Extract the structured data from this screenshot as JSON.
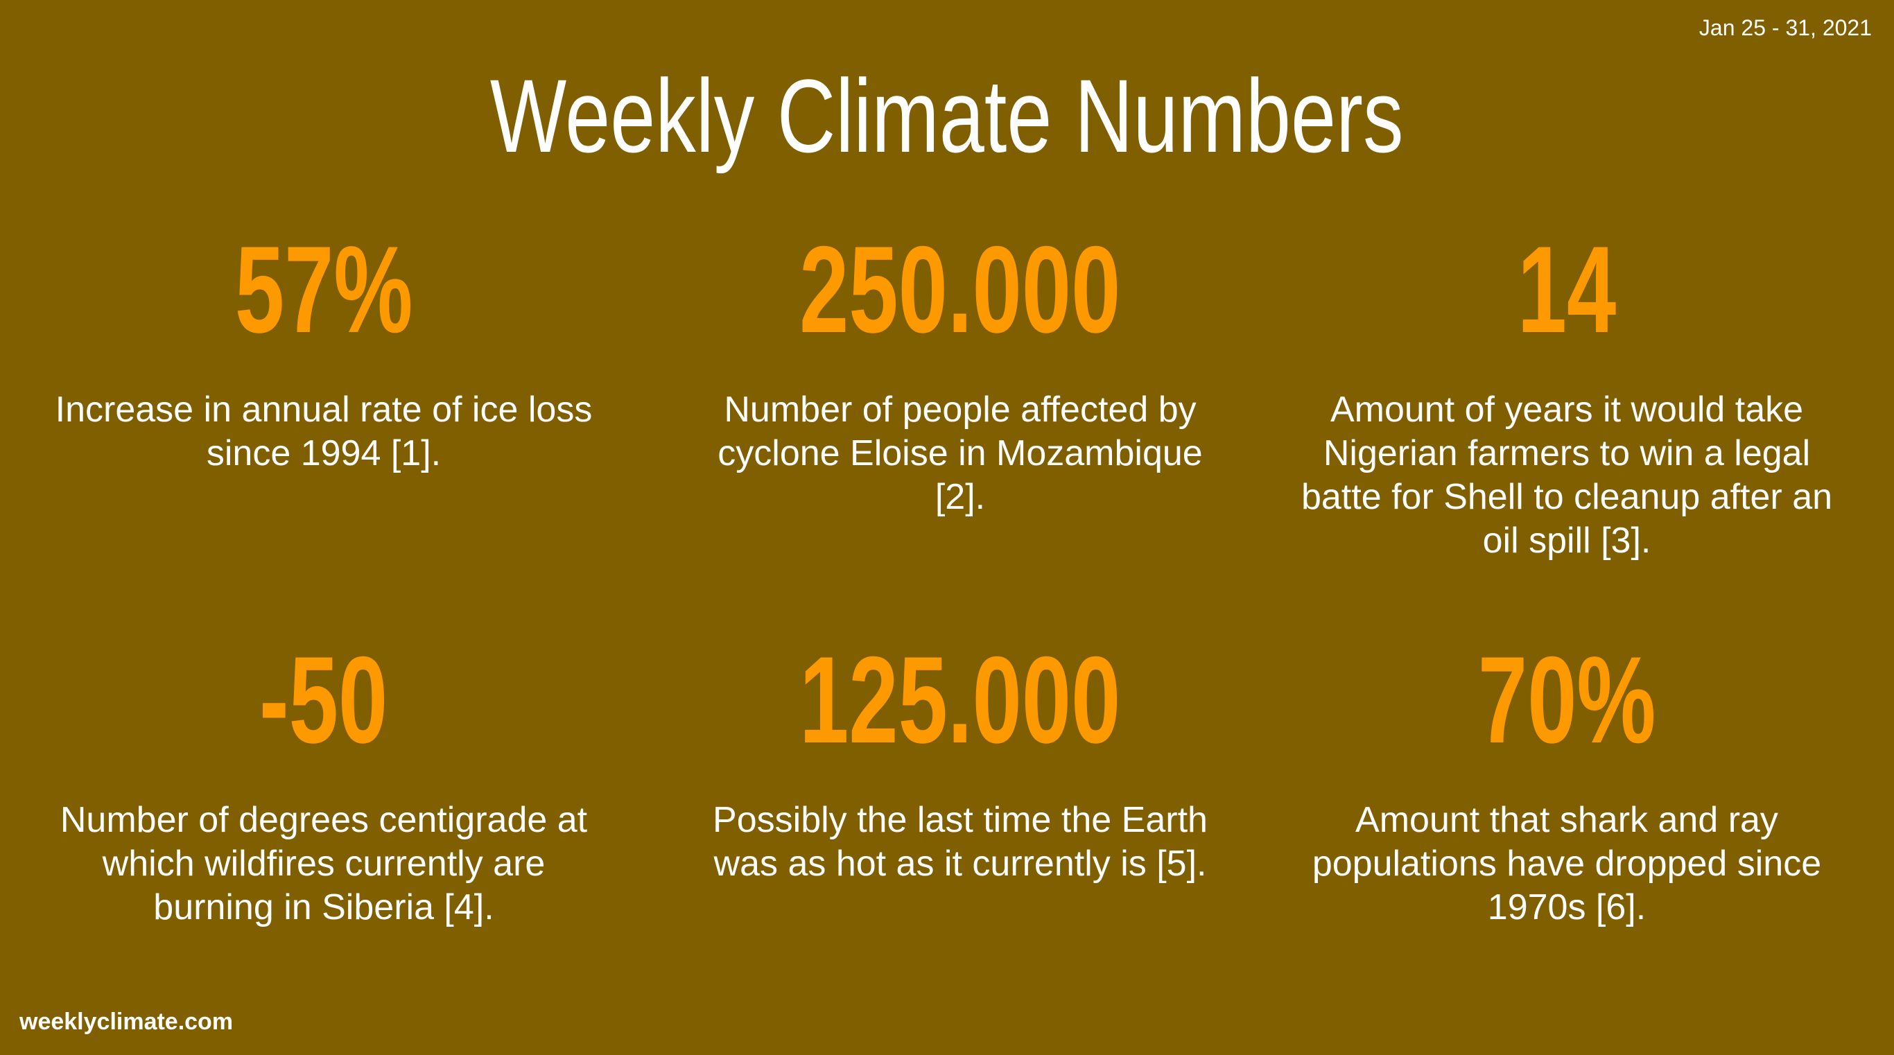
{
  "date": "Jan 25 - 31, 2021",
  "title": "Weekly Climate Numbers",
  "stats": [
    {
      "number": "57%",
      "description": "Increase in annual rate of ice loss since 1994 [1]."
    },
    {
      "number": "250.000",
      "description": "Number of people affected by cyclone Eloise in Mozambique [2]."
    },
    {
      "number": "14",
      "description": "Amount of years it would take Nigerian farmers to win a legal batte for Shell to cleanup after an oil spill [3]."
    },
    {
      "number": "-50",
      "description": "Number of degrees centigrade at which wildfires currently are burning in Siberia [4]."
    },
    {
      "number": "125.000",
      "description": "Possibly the last time the Earth was as hot as it currently is [5]."
    },
    {
      "number": "70%",
      "description": "Amount that shark and ray populations have dropped since 1970s [6]."
    }
  ],
  "footer": "weeklyclimate.com"
}
